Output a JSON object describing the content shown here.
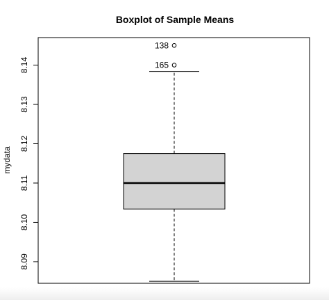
{
  "chart_data": {
    "type": "boxplot",
    "title": "Boxplot of Sample Means",
    "ylabel": "mydata",
    "xlabel": "",
    "ylim": [
      8.0845,
      8.147
    ],
    "y_ticks": [
      8.09,
      8.1,
      8.11,
      8.12,
      8.13,
      8.14
    ],
    "y_tick_labels": [
      "8.09",
      "8.10",
      "8.11",
      "8.12",
      "8.13",
      "8.14"
    ],
    "box": {
      "whisker_low": 8.085,
      "q1": 8.1034,
      "median": 8.11,
      "q3": 8.1175,
      "whisker_high": 8.1384
    },
    "outliers": [
      {
        "label": "165",
        "value": 8.14
      },
      {
        "label": "138",
        "value": 8.145
      }
    ],
    "box_fill": "#d3d3d3",
    "grid": false
  }
}
